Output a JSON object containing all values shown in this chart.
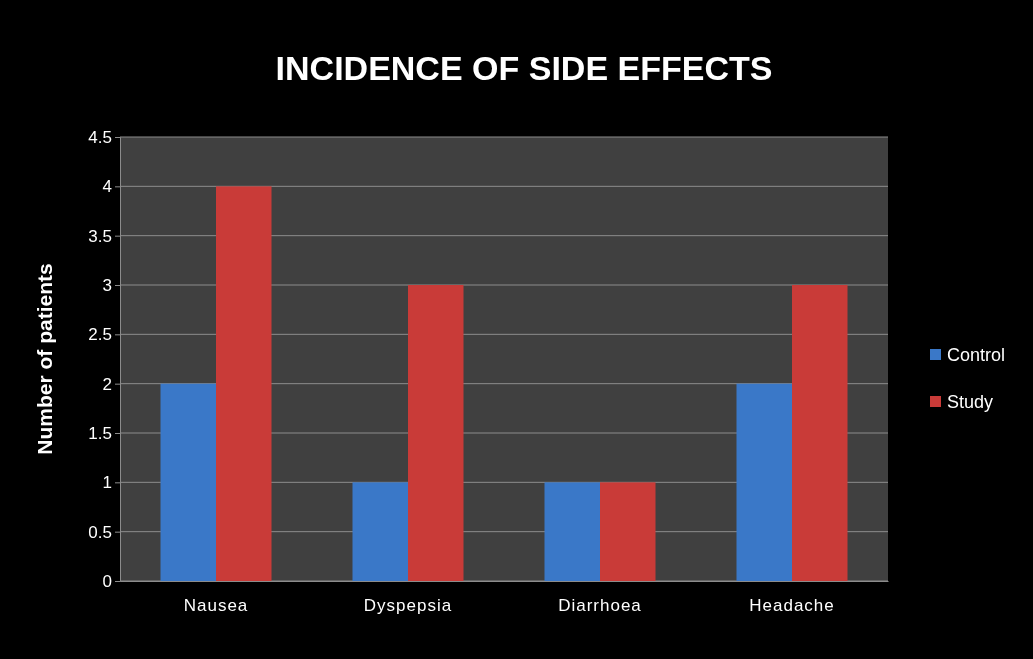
{
  "chart_data": {
    "type": "bar",
    "title": "INCIDENCE OF SIDE EFFECTS",
    "ylabel": "Number of patients",
    "categories": [
      "Nausea",
      "Dyspepsia",
      "Diarrhoea",
      "Headache"
    ],
    "series": [
      {
        "name": "Control",
        "color": "#3a78c8",
        "values": [
          2,
          1,
          1,
          2
        ]
      },
      {
        "name": "Study",
        "color": "#c93b38",
        "values": [
          4,
          3,
          1,
          3
        ]
      }
    ],
    "ylim": [
      0,
      4.5
    ],
    "yticks": [
      0,
      0.5,
      1,
      1.5,
      2,
      2.5,
      3,
      3.5,
      4,
      4.5
    ],
    "grid": "y",
    "legend": "right"
  }
}
